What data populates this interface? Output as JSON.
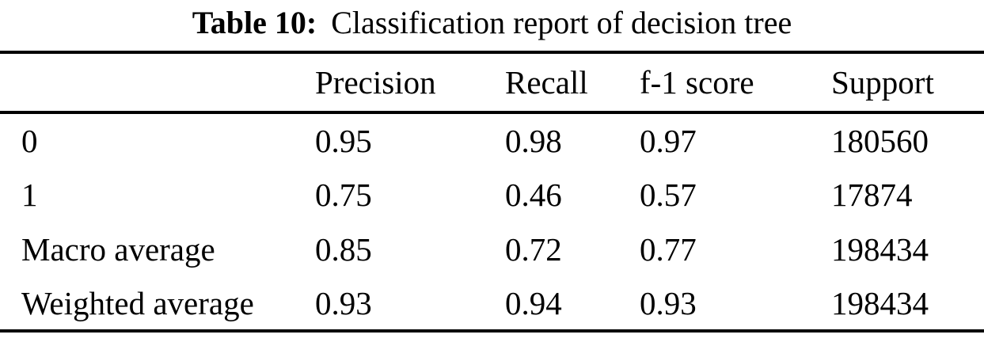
{
  "caption": {
    "label": "Table 10:",
    "text": "Classification report of decision tree"
  },
  "table": {
    "columns": [
      "",
      "Precision",
      "Recall",
      "f-1 score",
      "Support"
    ],
    "rows": [
      [
        "0",
        "0.95",
        "0.98",
        "0.97",
        "180560"
      ],
      [
        "1",
        "0.75",
        "0.46",
        "0.57",
        "17874"
      ],
      [
        "Macro average",
        "0.85",
        "0.72",
        "0.77",
        "198434"
      ],
      [
        "Weighted average",
        "0.93",
        "0.94",
        "0.93",
        "198434"
      ]
    ]
  },
  "colors": {
    "text": "#000000",
    "background": "#ffffff",
    "rule": "#000000"
  }
}
